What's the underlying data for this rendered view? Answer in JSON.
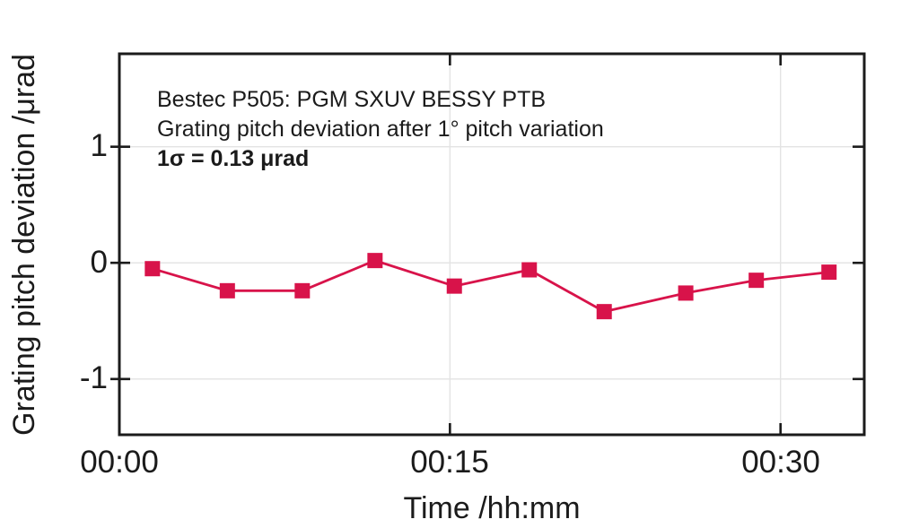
{
  "chart_data": {
    "type": "line",
    "title": "Bestec P505: PGM SXUV BESSY PTB",
    "subtitle": "Grating pitch deviation after 1° pitch variation",
    "sigma_annotation": "1σ = 0.13 μrad",
    "xlabel": "Time /hh:mm",
    "ylabel": "Grating pitch deviation /μrad",
    "x_minutes": [
      1.5,
      4.9,
      8.3,
      11.6,
      15.2,
      18.6,
      22.0,
      25.7,
      28.9,
      32.2
    ],
    "values": [
      -0.05,
      -0.24,
      -0.24,
      0.02,
      -0.2,
      -0.06,
      -0.42,
      -0.26,
      -0.15,
      -0.08
    ],
    "series_name": "Grating pitch deviation",
    "xlim": [
      0,
      33.8
    ],
    "ylim": [
      -1.48,
      1.8
    ],
    "x_ticks": [
      {
        "minute": 0,
        "label": "00:00"
      },
      {
        "minute": 15,
        "label": "00:15"
      },
      {
        "minute": 30,
        "label": "00:30"
      }
    ],
    "y_ticks": [
      {
        "value": 1,
        "label": "1"
      },
      {
        "value": 0,
        "label": "0"
      },
      {
        "value": -1,
        "label": "-1"
      }
    ],
    "x_grid_minutes": [
      15,
      30
    ],
    "grid": true,
    "legend": "none",
    "marker": "square",
    "marker_size_px": 17,
    "colors": {
      "series": "#d8134a",
      "grid": "#e3e3e3",
      "axis": "#1b1b1b",
      "text": "#1b1b1b",
      "background": "#ffffff"
    }
  }
}
